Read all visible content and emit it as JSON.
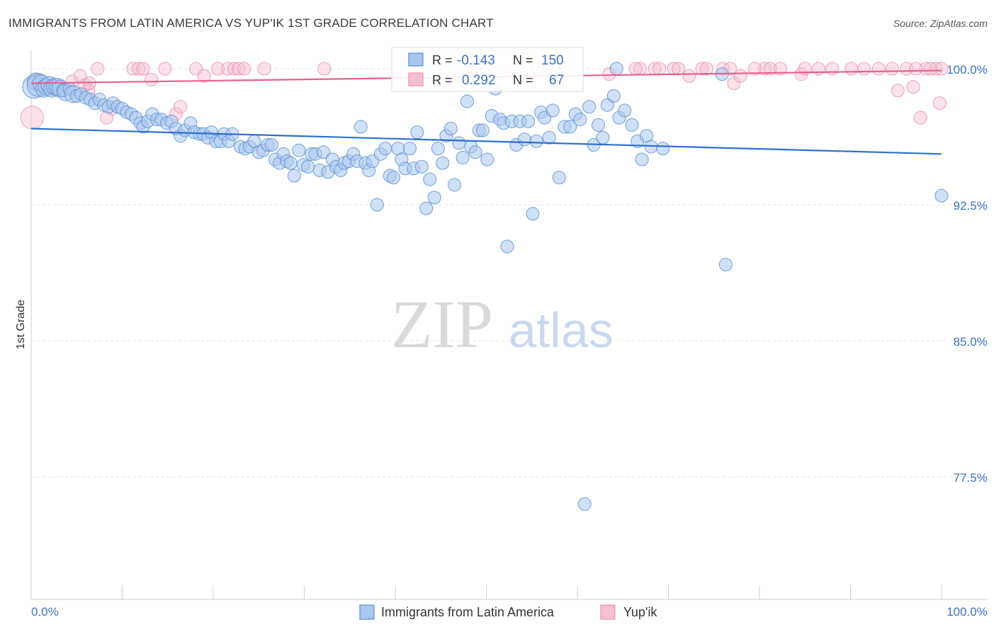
{
  "chart_data": {
    "type": "scatter",
    "title": "IMMIGRANTS FROM LATIN AMERICA VS YUP'IK 1ST GRADE CORRELATION CHART",
    "source": "Source: ZipAtlas.com",
    "ylabel": "1st Grade",
    "xlabel": "",
    "xlim": [
      0,
      100
    ],
    "ylim": [
      70.0,
      100.6
    ],
    "x_tick_labels": [
      "0.0%",
      "100.0%"
    ],
    "y_ticks": [
      {
        "value": 100.0,
        "label": "100.0%"
      },
      {
        "value": 92.5,
        "label": "92.5%"
      },
      {
        "value": 85.0,
        "label": "85.0%"
      },
      {
        "value": 77.5,
        "label": "77.5%"
      }
    ],
    "x_minor_ticks": [
      0,
      10,
      20,
      30,
      40,
      50,
      60,
      70,
      80,
      90,
      100
    ],
    "watermark": {
      "zip": "ZIP",
      "atlas": "atlas"
    },
    "colors": {
      "blue_fill": "#a9c6ee",
      "blue_stroke": "#5b8fd6",
      "blue_line": "#2f6fcf",
      "pink_fill": "#f6bfd1",
      "pink_stroke": "#ec8fae",
      "pink_line": "#e8628f",
      "grid": "#e3e3e3",
      "tick_text": "#3d72c4"
    },
    "stats": [
      {
        "r_label": "R =",
        "r_value": "-0.143",
        "n_label": "N =",
        "n_value": "150"
      },
      {
        "r_label": "R =",
        "r_value": "0.292",
        "n_label": "N =",
        "n_value": "67"
      }
    ],
    "series": [
      {
        "name": "Immigrants from Latin America",
        "color_key": "blue",
        "trend": {
          "x": [
            0,
            100
          ],
          "y": [
            96.7,
            95.3
          ]
        },
        "points": [
          [
            0.3,
            99.0,
            3
          ],
          [
            0.5,
            99.3,
            2
          ],
          [
            0.8,
            99.1,
            3
          ],
          [
            1.1,
            99.2,
            2
          ],
          [
            1.4,
            98.9,
            2
          ],
          [
            1.7,
            99.0,
            2
          ],
          [
            2.0,
            99.1,
            2
          ],
          [
            2.3,
            98.9,
            2
          ],
          [
            2.6,
            99.0,
            2
          ],
          [
            2.9,
            99.0,
            2
          ],
          [
            3.2,
            98.9,
            2
          ],
          [
            3.5,
            98.8,
            1
          ],
          [
            3.8,
            98.7,
            2
          ],
          [
            4.2,
            98.9,
            1
          ],
          [
            4.6,
            98.6,
            2
          ],
          [
            5.0,
            98.5,
            1
          ],
          [
            5.5,
            98.6,
            1
          ],
          [
            6.0,
            98.4,
            1
          ],
          [
            6.5,
            98.3,
            1
          ],
          [
            7.0,
            98.1,
            1
          ],
          [
            7.5,
            98.3,
            1
          ],
          [
            8.0,
            98.0,
            1
          ],
          [
            8.5,
            97.9,
            1
          ],
          [
            9.0,
            98.1,
            1
          ],
          [
            9.5,
            97.9,
            1
          ],
          [
            10.0,
            97.8,
            1
          ],
          [
            10.5,
            97.6,
            1
          ],
          [
            11.0,
            97.5,
            1
          ],
          [
            11.5,
            97.3,
            1
          ],
          [
            12.0,
            97.0,
            1
          ],
          [
            12.3,
            96.8,
            1
          ],
          [
            12.8,
            97.1,
            1
          ],
          [
            13.3,
            97.5,
            1
          ],
          [
            13.8,
            97.2,
            1
          ],
          [
            14.3,
            97.2,
            1
          ],
          [
            14.9,
            97.0,
            1
          ],
          [
            15.4,
            97.1,
            1
          ],
          [
            15.9,
            96.7,
            1
          ],
          [
            16.4,
            96.3,
            1
          ],
          [
            16.9,
            96.6,
            1
          ],
          [
            17.5,
            97.0,
            1
          ],
          [
            17.9,
            96.5,
            1
          ],
          [
            18.5,
            96.4,
            1
          ],
          [
            18.9,
            96.4,
            1
          ],
          [
            19.4,
            96.2,
            1
          ],
          [
            19.8,
            96.5,
            1
          ],
          [
            20.3,
            96.0,
            1
          ],
          [
            20.8,
            96.0,
            1
          ],
          [
            21.2,
            96.4,
            1
          ],
          [
            21.7,
            96.0,
            1
          ],
          [
            22.1,
            96.4,
            1
          ],
          [
            23.0,
            95.7,
            1
          ],
          [
            23.5,
            95.6,
            1
          ],
          [
            24.0,
            95.7,
            1
          ],
          [
            24.5,
            96.0,
            1
          ],
          [
            25.0,
            95.4,
            1
          ],
          [
            25.5,
            95.5,
            1
          ],
          [
            26.0,
            95.8,
            1
          ],
          [
            26.4,
            95.8,
            1
          ],
          [
            26.8,
            95.0,
            1
          ],
          [
            27.3,
            94.8,
            1
          ],
          [
            27.7,
            95.3,
            1
          ],
          [
            28.1,
            94.9,
            1
          ],
          [
            28.5,
            94.8,
            1
          ],
          [
            28.9,
            94.1,
            1
          ],
          [
            29.4,
            95.5,
            1
          ],
          [
            29.9,
            94.7,
            1
          ],
          [
            30.4,
            94.6,
            1
          ],
          [
            30.8,
            95.3,
            1
          ],
          [
            31.2,
            95.3,
            1
          ],
          [
            31.7,
            94.4,
            1
          ],
          [
            32.1,
            95.4,
            1
          ],
          [
            32.6,
            94.3,
            1
          ],
          [
            33.1,
            95.0,
            1
          ],
          [
            33.5,
            94.6,
            1
          ],
          [
            34.0,
            94.4,
            1
          ],
          [
            34.4,
            94.8,
            1
          ],
          [
            34.9,
            94.9,
            1
          ],
          [
            35.4,
            95.3,
            1
          ],
          [
            35.8,
            94.9,
            1
          ],
          [
            36.2,
            96.8,
            1
          ],
          [
            36.7,
            94.8,
            1
          ],
          [
            37.1,
            94.4,
            1
          ],
          [
            37.5,
            94.9,
            1
          ],
          [
            38.0,
            92.5,
            1
          ],
          [
            38.4,
            95.3,
            1
          ],
          [
            38.9,
            95.6,
            1
          ],
          [
            39.4,
            94.1,
            1
          ],
          [
            39.8,
            94.0,
            1
          ],
          [
            40.3,
            95.6,
            1
          ],
          [
            40.7,
            95.0,
            1
          ],
          [
            41.1,
            94.5,
            1
          ],
          [
            41.6,
            95.6,
            1
          ],
          [
            42.0,
            94.5,
            1
          ],
          [
            42.4,
            96.5,
            1
          ],
          [
            42.9,
            94.6,
            1
          ],
          [
            43.4,
            92.3,
            1
          ],
          [
            43.8,
            93.9,
            1
          ],
          [
            44.3,
            92.9,
            1
          ],
          [
            44.7,
            95.6,
            1
          ],
          [
            45.2,
            94.8,
            1
          ],
          [
            45.6,
            96.3,
            1
          ],
          [
            46.1,
            96.7,
            1
          ],
          [
            46.5,
            93.6,
            1
          ],
          [
            47.0,
            95.9,
            1
          ],
          [
            47.4,
            95.1,
            1
          ],
          [
            47.9,
            98.2,
            1
          ],
          [
            48.3,
            95.7,
            1
          ],
          [
            48.8,
            95.4,
            1
          ],
          [
            49.2,
            96.6,
            1
          ],
          [
            49.6,
            96.6,
            1
          ],
          [
            50.1,
            95.0,
            1
          ],
          [
            50.6,
            97.4,
            1
          ],
          [
            51.0,
            98.9,
            1
          ],
          [
            51.5,
            97.2,
            1
          ],
          [
            51.9,
            97.0,
            1
          ],
          [
            52.3,
            90.2,
            1
          ],
          [
            52.8,
            97.1,
            1
          ],
          [
            53.3,
            95.8,
            1
          ],
          [
            53.7,
            97.1,
            1
          ],
          [
            54.2,
            96.1,
            1
          ],
          [
            54.6,
            97.1,
            1
          ],
          [
            55.1,
            92.0,
            1
          ],
          [
            55.5,
            96.0,
            1
          ],
          [
            56.0,
            97.6,
            1
          ],
          [
            56.4,
            97.3,
            1
          ],
          [
            56.9,
            96.2,
            1
          ],
          [
            57.3,
            97.7,
            1
          ],
          [
            58.0,
            94.0,
            1
          ],
          [
            58.6,
            96.8,
            1
          ],
          [
            59.2,
            96.8,
            1
          ],
          [
            59.8,
            97.5,
            1
          ],
          [
            60.3,
            97.2,
            1
          ],
          [
            60.8,
            76.0,
            1
          ],
          [
            61.3,
            97.9,
            1
          ],
          [
            61.8,
            95.8,
            1
          ],
          [
            62.3,
            96.9,
            1
          ],
          [
            62.8,
            96.2,
            1
          ],
          [
            63.3,
            98.0,
            1
          ],
          [
            64.0,
            98.5,
            1
          ],
          [
            64.6,
            97.3,
            1
          ],
          [
            65.2,
            97.7,
            1
          ],
          [
            66.0,
            96.9,
            1
          ],
          [
            66.6,
            96.0,
            1
          ],
          [
            67.1,
            95.0,
            1
          ],
          [
            67.6,
            96.3,
            1
          ],
          [
            68.1,
            95.7,
            1
          ],
          [
            69.4,
            95.6,
            1
          ],
          [
            76.3,
            89.2,
            1
          ],
          [
            75.9,
            99.7,
            1
          ],
          [
            64.3,
            100.0,
            1
          ],
          [
            100.0,
            93.0,
            1
          ]
        ]
      },
      {
        "name": "Yup'ik",
        "color_key": "pink",
        "trend": {
          "x": [
            0,
            100
          ],
          "y": [
            99.2,
            99.9
          ]
        },
        "points": [
          [
            0.1,
            97.3,
            3
          ],
          [
            1.1,
            99.3,
            1
          ],
          [
            2.3,
            99.0,
            1
          ],
          [
            3.4,
            98.8,
            1
          ],
          [
            4.5,
            99.3,
            1
          ],
          [
            5.4,
            99.6,
            1
          ],
          [
            5.9,
            99.1,
            1
          ],
          [
            6.3,
            98.8,
            1
          ],
          [
            6.4,
            99.2,
            1
          ],
          [
            7.3,
            100.0,
            1
          ],
          [
            8.3,
            97.3,
            1
          ],
          [
            8.9,
            97.8,
            1
          ],
          [
            11.2,
            100.0,
            1
          ],
          [
            11.8,
            100.0,
            1
          ],
          [
            12.3,
            100.0,
            1
          ],
          [
            13.2,
            99.4,
            1
          ],
          [
            14.7,
            100.0,
            1
          ],
          [
            15.9,
            97.5,
            1
          ],
          [
            16.4,
            97.9,
            1
          ],
          [
            18.1,
            100.0,
            1
          ],
          [
            19.0,
            99.6,
            1
          ],
          [
            20.5,
            100.0,
            1
          ],
          [
            21.6,
            100.0,
            1
          ],
          [
            22.3,
            100.0,
            1
          ],
          [
            22.8,
            100.0,
            1
          ],
          [
            23.4,
            100.0,
            1
          ],
          [
            25.6,
            100.0,
            1
          ],
          [
            32.2,
            100.0,
            1
          ],
          [
            48.7,
            100.0,
            1
          ],
          [
            55.6,
            100.0,
            1
          ],
          [
            57.8,
            99.7,
            1
          ],
          [
            63.5,
            99.7,
            1
          ],
          [
            66.9,
            100.0,
            1
          ],
          [
            68.5,
            100.0,
            1
          ],
          [
            70.6,
            100.0,
            1
          ],
          [
            72.3,
            99.6,
            1
          ],
          [
            73.7,
            100.0,
            1
          ],
          [
            76.0,
            100.0,
            1
          ],
          [
            77.2,
            99.2,
            1
          ],
          [
            77.9,
            99.6,
            1
          ],
          [
            80.6,
            100.0,
            1
          ],
          [
            81.2,
            100.0,
            1
          ],
          [
            84.6,
            99.7,
            1
          ],
          [
            85.0,
            100.0,
            1
          ],
          [
            86.5,
            100.0,
            1
          ],
          [
            88.0,
            100.0,
            1
          ],
          [
            90.1,
            100.0,
            1
          ],
          [
            93.1,
            100.0,
            1
          ],
          [
            94.6,
            100.0,
            1
          ],
          [
            95.2,
            98.8,
            1
          ],
          [
            96.2,
            100.0,
            1
          ],
          [
            96.9,
            99.0,
            1
          ],
          [
            97.7,
            97.3,
            1
          ],
          [
            98.3,
            100.0,
            1
          ],
          [
            99.4,
            100.0,
            1
          ],
          [
            100.0,
            100.0,
            1
          ],
          [
            99.8,
            98.1,
            1
          ],
          [
            66.4,
            100.0,
            1
          ],
          [
            69.0,
            100.0,
            1
          ],
          [
            71.1,
            100.0,
            1
          ],
          [
            74.2,
            100.0,
            1
          ],
          [
            76.8,
            100.0,
            1
          ],
          [
            79.5,
            100.0,
            1
          ],
          [
            82.3,
            100.0,
            1
          ],
          [
            91.5,
            100.0,
            1
          ],
          [
            97.2,
            100.0,
            1
          ],
          [
            98.8,
            100.0,
            1
          ]
        ]
      }
    ],
    "legend": [
      {
        "label": "Immigrants from Latin America",
        "color_key": "blue"
      },
      {
        "label": "Yup'ik",
        "color_key": "pink"
      }
    ]
  }
}
